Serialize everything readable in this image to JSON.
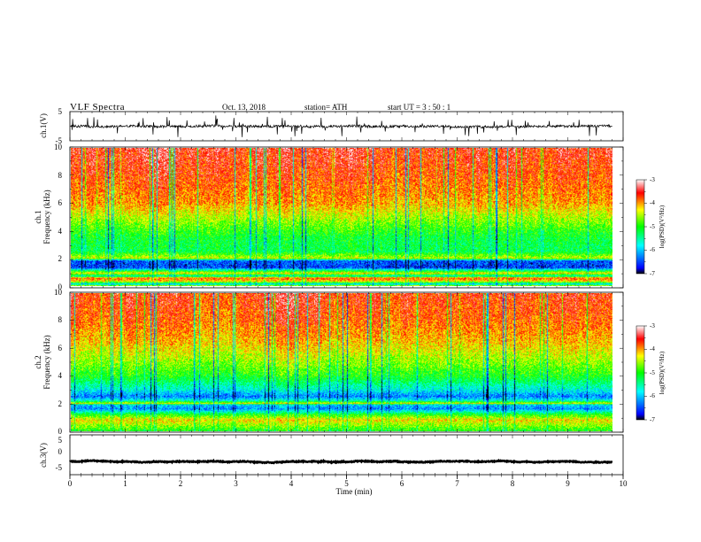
{
  "header": {
    "title": "VLF  Spectra",
    "date": "Oct. 13, 2018",
    "station": "station= ATH",
    "start": "start  UT  =    3  : 50 : 1"
  },
  "chart_data": [
    {
      "type": "line",
      "name": "ch1-waveform",
      "ylabel": "ch.1(V)",
      "ylim": [
        -5,
        5
      ],
      "yticks": [
        "5",
        "-5"
      ],
      "xlim": [
        0,
        10
      ],
      "x_end": 9.8,
      "baseline": 0,
      "noise_amplitude": 0.8,
      "spike_amplitude": 3.5
    },
    {
      "type": "heatmap",
      "name": "ch1-spectrogram",
      "ylabel": "ch.1\nFrequency (kHz)",
      "ylabel_lines": [
        "ch.1",
        "Frequency (kHz)"
      ],
      "ylim": [
        0,
        10
      ],
      "yticks": [
        "10",
        "8",
        "6",
        "4",
        "2",
        "0"
      ],
      "xlim": [
        0,
        10
      ],
      "x_end": 9.8,
      "colorbar": {
        "label": "log(PSD)(V²/Hz)",
        "ticks": [
          "-3",
          "-4",
          "-5",
          "-6",
          "-7"
        ],
        "range": [
          -7,
          -3
        ]
      },
      "level_profile_kHz_to_logPSD": [
        [
          0.0,
          -4.6
        ],
        [
          0.1,
          -6.0
        ],
        [
          0.3,
          -4.3
        ],
        [
          0.55,
          -3.7
        ],
        [
          0.7,
          -5.6
        ],
        [
          0.9,
          -4.2
        ],
        [
          1.1,
          -5.3
        ],
        [
          1.3,
          -6.5
        ],
        [
          1.8,
          -6.4
        ],
        [
          2.0,
          -4.4
        ],
        [
          2.5,
          -5.2
        ],
        [
          3.5,
          -5.1
        ],
        [
          4.5,
          -4.7
        ],
        [
          6.0,
          -4.0
        ],
        [
          8.0,
          -3.7
        ],
        [
          10.0,
          -3.5
        ]
      ]
    },
    {
      "type": "heatmap",
      "name": "ch2-spectrogram",
      "ylabel_lines": [
        "ch.2",
        "Frequency (kHz)"
      ],
      "ylim": [
        0,
        10
      ],
      "yticks": [
        "10",
        "8",
        "6",
        "4",
        "2",
        "0"
      ],
      "xlim": [
        0,
        10
      ],
      "x_end": 9.8,
      "colorbar": {
        "label": "log(PSD)(V²/Hz)",
        "ticks": [
          "-3",
          "-4",
          "-5",
          "-6",
          "-7"
        ],
        "range": [
          -7,
          -3
        ]
      },
      "level_profile_kHz_to_logPSD": [
        [
          0.0,
          -5.0
        ],
        [
          0.4,
          -4.6
        ],
        [
          0.8,
          -4.2
        ],
        [
          1.2,
          -5.0
        ],
        [
          1.6,
          -6.2
        ],
        [
          1.9,
          -5.9
        ],
        [
          2.0,
          -4.3
        ],
        [
          2.2,
          -5.6
        ],
        [
          2.5,
          -6.3
        ],
        [
          3.0,
          -5.7
        ],
        [
          4.0,
          -5.0
        ],
        [
          5.0,
          -4.6
        ],
        [
          6.5,
          -4.1
        ],
        [
          8.0,
          -3.8
        ],
        [
          10.0,
          -3.6
        ]
      ]
    },
    {
      "type": "line",
      "name": "ch3-waveform",
      "ylabel": "ch.3(V)",
      "ylim": [
        -5,
        5
      ],
      "yticks": [
        "5",
        "0",
        "-5"
      ],
      "xlim": [
        0,
        10
      ],
      "x_end": 9.8,
      "baseline": -1.7,
      "noise_amplitude": 0.2,
      "spike_amplitude": 0
    }
  ],
  "x_axis": {
    "label": "Time  (min)",
    "ticks": [
      "0",
      "1",
      "2",
      "3",
      "4",
      "5",
      "6",
      "7",
      "8",
      "9",
      "10"
    ]
  },
  "colors": {
    "scale_low_to_high": [
      "#000000",
      "#0000ff",
      "#00ffff",
      "#00ff00",
      "#ffff00",
      "#ff0000",
      "#ffffff"
    ],
    "trace": "#000000",
    "background": "#ffffff"
  }
}
